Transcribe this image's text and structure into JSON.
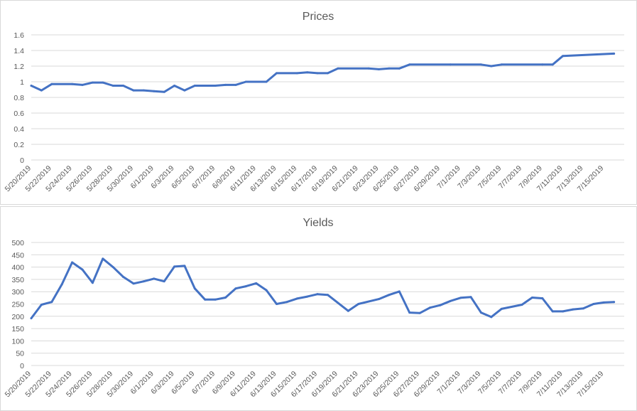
{
  "colors": {
    "series": "#4472c4"
  },
  "chart_data": [
    {
      "type": "line",
      "title": "Prices",
      "ylim": [
        0,
        1.6
      ],
      "yticks": [
        "0",
        "0.2",
        "0.4",
        "0.6",
        "0.8",
        "1",
        "1.2",
        "1.4",
        "1.6"
      ],
      "grid": true,
      "xtick_labels": [
        "5/20/2019",
        "5/22/2019",
        "5/24/2019",
        "5/26/2019",
        "5/28/2019",
        "5/30/2019",
        "6/1/2019",
        "6/3/2019",
        "6/5/2019",
        "6/7/2019",
        "6/9/2019",
        "6/11/2019",
        "6/13/2019",
        "6/15/2019",
        "6/17/2019",
        "6/19/2019",
        "6/21/2019",
        "6/23/2019",
        "6/25/2019",
        "6/27/2019",
        "6/29/2019",
        "7/1/2019",
        "7/3/2019",
        "7/5/2019",
        "7/7/2019",
        "7/9/2019",
        "7/11/2019",
        "7/13/2019",
        "7/15/2019"
      ],
      "x": [
        "5/20/2019",
        "5/21/2019",
        "5/22/2019",
        "5/24/2019",
        "5/25/2019",
        "5/26/2019",
        "5/27/2019",
        "5/28/2019",
        "5/29/2019",
        "5/30/2019",
        "5/31/2019",
        "6/1/2019",
        "6/2/2019",
        "6/3/2019",
        "6/4/2019",
        "6/5/2019",
        "6/7/2019",
        "6/8/2019",
        "6/9/2019",
        "6/10/2019",
        "6/12/2019",
        "6/13/2019",
        "6/15/2019",
        "6/16/2019",
        "6/17/2019",
        "6/18/2019",
        "6/19/2019",
        "6/22/2019",
        "6/23/2019",
        "6/24/2019",
        "6/25/2019",
        "6/26/2019",
        "6/30/2019",
        "7/3/2019",
        "7/4/2019",
        "7/5/2019",
        "7/9/2019",
        "7/10/2019",
        "7/11/2019",
        "7/16/2019"
      ],
      "series": [
        {
          "values": [
            0.95,
            0.89,
            0.97,
            0.97,
            0.96,
            0.99,
            0.99,
            0.95,
            0.95,
            0.89,
            0.89,
            0.88,
            0.87,
            0.95,
            0.89,
            0.95,
            0.95,
            0.96,
            0.96,
            1.0,
            1.0,
            1.11,
            1.11,
            1.12,
            1.11,
            1.11,
            1.17,
            1.17,
            1.16,
            1.17,
            1.17,
            1.22,
            1.22,
            1.22,
            1.2,
            1.22,
            1.22,
            1.22,
            1.33,
            1.36
          ]
        }
      ]
    },
    {
      "type": "line",
      "title": "Yields",
      "ylim": [
        0,
        500
      ],
      "yticks": [
        "0",
        "50",
        "100",
        "150",
        "200",
        "250",
        "300",
        "350",
        "400",
        "450",
        "500"
      ],
      "grid": true,
      "xtick_labels": [
        "5/20/2019",
        "5/22/2019",
        "5/24/2019",
        "5/26/2019",
        "5/28/2019",
        "5/30/2019",
        "6/1/2019",
        "6/3/2019",
        "6/5/2019",
        "6/7/2019",
        "6/9/2019",
        "6/11/2019",
        "6/13/2019",
        "6/15/2019",
        "6/17/2019",
        "6/19/2019",
        "6/21/2019",
        "6/23/2019",
        "6/25/2019",
        "6/27/2019",
        "6/29/2019",
        "7/1/2019",
        "7/3/2019",
        "7/5/2019",
        "7/7/2019",
        "7/9/2019",
        "7/11/2019",
        "7/13/2019",
        "7/15/2019"
      ],
      "x": [
        "5/20/2019",
        "5/21/2019",
        "5/22/2019",
        "5/23/2019",
        "5/24/2019",
        "5/25/2019",
        "5/26/2019",
        "5/27/2019",
        "5/28/2019",
        "5/29/2019",
        "5/30/2019",
        "5/31/2019",
        "6/1/2019",
        "6/2/2019",
        "6/3/2019",
        "6/4/2019",
        "6/5/2019",
        "6/6/2019",
        "6/7/2019",
        "6/8/2019",
        "6/9/2019",
        "6/10/2019",
        "6/11/2019",
        "6/12/2019",
        "6/13/2019",
        "6/14/2019",
        "6/15/2019",
        "6/16/2019",
        "6/17/2019",
        "6/18/2019",
        "6/20/2019",
        "6/21/2019",
        "6/23/2019",
        "6/24/2019",
        "6/25/2019",
        "6/26/2019",
        "6/27/2019",
        "6/28/2019",
        "6/29/2019",
        "6/30/2019",
        "7/1/2019",
        "7/2/2019",
        "7/3/2019",
        "7/4/2019",
        "7/5/2019",
        "7/7/2019",
        "7/8/2019",
        "7/9/2019",
        "7/10/2019",
        "7/11/2019",
        "7/12/2019",
        "7/13/2019",
        "7/14/2019",
        "7/15/2019",
        "7/16/2019"
      ],
      "series": [
        {
          "values": [
            192,
            247,
            258,
            330,
            419,
            390,
            336,
            434,
            400,
            360,
            333,
            342,
            353,
            342,
            402,
            405,
            313,
            268,
            268,
            276,
            313,
            322,
            334,
            306,
            250,
            258,
            272,
            280,
            290,
            287,
            222,
            250,
            270,
            287,
            301,
            215,
            213,
            235,
            245,
            262,
            275,
            278,
            215,
            197,
            230,
            247,
            276,
            273,
            220,
            220,
            228,
            232,
            250,
            256,
            258
          ]
        }
      ]
    }
  ]
}
